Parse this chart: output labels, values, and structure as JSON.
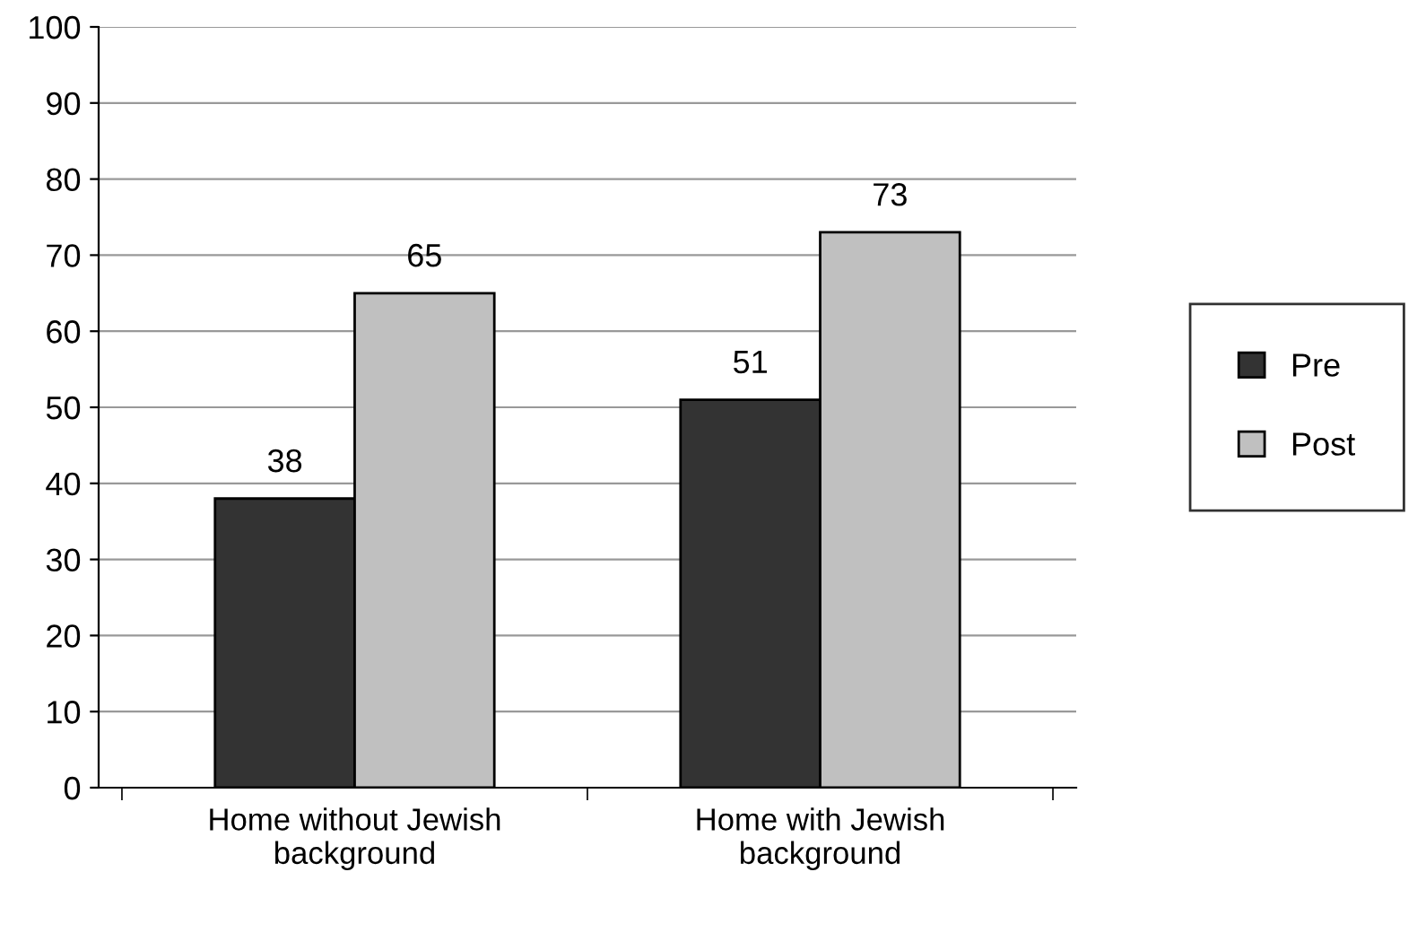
{
  "chart_data": {
    "type": "bar",
    "categories": [
      "Home without Jewish\nbackground",
      "Home with Jewish\nbackground"
    ],
    "series": [
      {
        "name": "Pre",
        "color": "#333333",
        "values": [
          38,
          51
        ]
      },
      {
        "name": "Post",
        "color": "#c0c0c0",
        "values": [
          65,
          73
        ]
      }
    ],
    "ylim": [
      0,
      100
    ],
    "yticks": [
      0,
      10,
      20,
      30,
      40,
      50,
      60,
      70,
      80,
      90,
      100
    ],
    "grid": "y",
    "legend": "right",
    "data_labels": true
  }
}
